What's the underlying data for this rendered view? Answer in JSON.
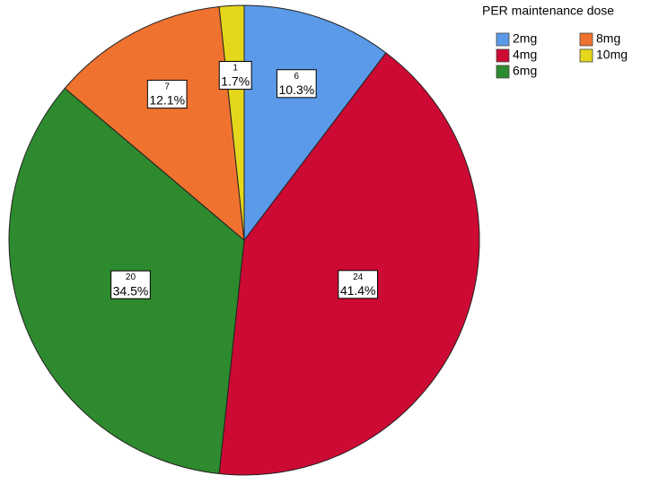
{
  "chart_data": {
    "type": "pie",
    "legend_title": "PER maintenance dose",
    "categories": [
      "2mg",
      "4mg",
      "6mg",
      "8mg",
      "10mg"
    ],
    "values": [
      10.3,
      41.4,
      34.5,
      12.1,
      1.7
    ],
    "value_labels": [
      "10.3%",
      "41.4%",
      "34.5%",
      "12.1%",
      "1.7%"
    ],
    "counts": [
      6,
      24,
      20,
      7,
      1
    ],
    "colors": [
      "#5b9ae8",
      "#cc0a33",
      "#2e8a2e",
      "#f0722f",
      "#e4d71c"
    ],
    "legend": "top-right"
  }
}
